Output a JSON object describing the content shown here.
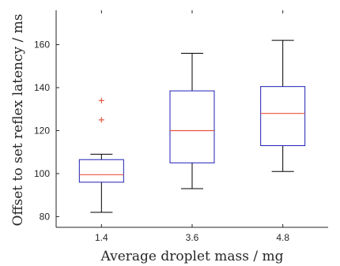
{
  "chart_data": {
    "type": "boxplot",
    "title": "",
    "xlabel": "Average droplet mass / mg",
    "ylabel": "Offset to set reflex latency / ms",
    "ylim": [
      75,
      176
    ],
    "yticks": [
      80,
      100,
      120,
      140,
      160
    ],
    "grid": false,
    "categories": [
      "1.4",
      "3.6",
      "4.8"
    ],
    "boxes": [
      {
        "category": "1.4",
        "whisker_low": 82,
        "q1": 96,
        "median": 99.5,
        "q3": 106.5,
        "whisker_high": 109,
        "outliers": [
          125,
          134
        ]
      },
      {
        "category": "3.6",
        "whisker_low": 93,
        "q1": 105,
        "median": 120,
        "q3": 138.5,
        "whisker_high": 156,
        "outliers": []
      },
      {
        "category": "4.8",
        "whisker_low": 101,
        "q1": 113,
        "median": 128,
        "q3": 140.5,
        "whisker_high": 162,
        "outliers": []
      }
    ],
    "colors": {
      "box": "#1f1fb4",
      "median": "#e8553f",
      "whisker": "#000000",
      "outlier": "#e8553f",
      "axis": "#262626"
    }
  }
}
